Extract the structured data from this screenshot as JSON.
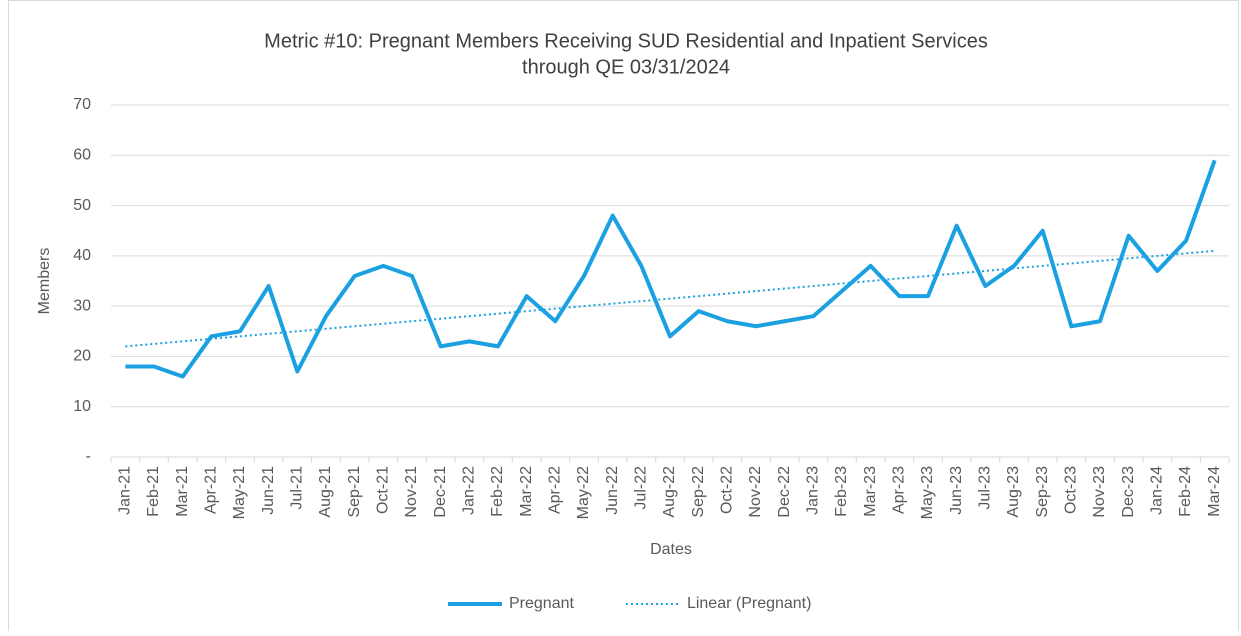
{
  "chart_data": {
    "type": "line",
    "title": [
      "Metric #10: Pregnant Members Receiving SUD Residential and Inpatient Services",
      "through QE 03/31/2024"
    ],
    "x_label": "Dates",
    "y_label": "Members",
    "categories": [
      "Jan-21",
      "Feb-21",
      "Mar-21",
      "Apr-21",
      "May-21",
      "Jun-21",
      "Jul-21",
      "Aug-21",
      "Sep-21",
      "Oct-21",
      "Nov-21",
      "Dec-21",
      "Jan-22",
      "Feb-22",
      "Mar-22",
      "Apr-22",
      "May-22",
      "Jun-22",
      "Jul-22",
      "Aug-22",
      "Sep-22",
      "Oct-22",
      "Nov-22",
      "Dec-22",
      "Jan-23",
      "Feb-23",
      "Mar-23",
      "Apr-23",
      "May-23",
      "Jun-23",
      "Jul-23",
      "Aug-23",
      "Sep-23",
      "Oct-23",
      "Nov-23",
      "Dec-23",
      "Jan-24",
      "Feb-24",
      "Mar-24"
    ],
    "series": [
      {
        "name": "Pregnant",
        "color": "#1ba1e2",
        "style": "solid",
        "values": [
          18,
          18,
          16,
          24,
          25,
          34,
          17,
          28,
          36,
          38,
          36,
          22,
          23,
          22,
          32,
          27,
          36,
          48,
          38,
          24,
          29,
          27,
          26,
          27,
          28,
          33,
          38,
          32,
          32,
          46,
          34,
          38,
          45,
          26,
          27,
          44,
          37,
          43,
          59
        ]
      },
      {
        "name": "Linear (Pregnant)",
        "color": "#1ba1e2",
        "style": "dotted",
        "values": [
          22,
          22.5,
          23,
          23.5,
          24,
          24.5,
          25,
          25.5,
          26,
          26.5,
          27,
          27.5,
          28,
          28.5,
          29,
          29.5,
          30,
          30.5,
          31,
          31.5,
          32,
          32.5,
          33,
          33.5,
          34,
          34.5,
          35,
          35.5,
          36,
          36.5,
          37,
          37.5,
          38,
          38.5,
          39,
          39.5,
          40,
          40.5,
          41
        ]
      }
    ],
    "ylim": [
      0,
      70
    ],
    "yticks": [
      {
        "value": 0,
        "label": "-"
      },
      10,
      20,
      30,
      40,
      50,
      60,
      70
    ],
    "grid": true,
    "legend": "bottom"
  }
}
